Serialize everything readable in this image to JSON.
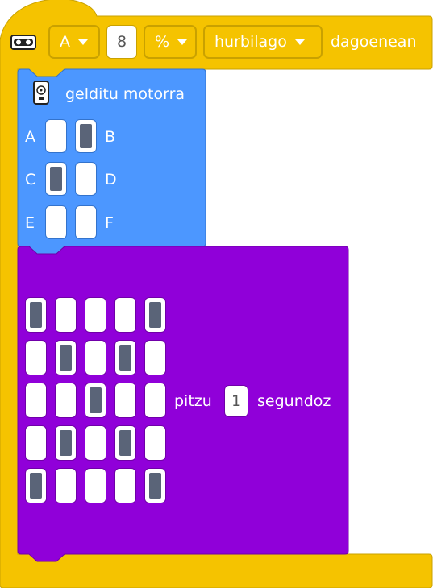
{
  "event_block": {
    "sensor_icon": "distance-sensor-icon",
    "port": "A",
    "value": "8",
    "unit": "%",
    "comparison": "hurbilago",
    "suffix": "dagoenean"
  },
  "stop_motor_block": {
    "icon": "motor-icon",
    "title": "gelditu motorra",
    "ports": [
      {
        "label": "A",
        "selected": false
      },
      {
        "label": "B",
        "selected": true
      },
      {
        "label": "C",
        "selected": true
      },
      {
        "label": "D",
        "selected": false
      },
      {
        "label": "E",
        "selected": false
      },
      {
        "label": "F",
        "selected": false
      }
    ]
  },
  "light_block": {
    "matrix": [
      [
        1,
        0,
        0,
        0,
        1
      ],
      [
        0,
        1,
        0,
        1,
        0
      ],
      [
        0,
        0,
        1,
        0,
        0
      ],
      [
        0,
        1,
        0,
        1,
        0
      ],
      [
        1,
        0,
        0,
        0,
        1
      ]
    ],
    "label_before": "pitzu",
    "duration": "1",
    "label_after": "segundoz"
  },
  "colors": {
    "event_yellow": "#f5c300",
    "event_border": "#c9a100",
    "motor_blue": "#4c97ff",
    "light_purple": "#9000d9",
    "pixel_on": "#5a6478"
  }
}
